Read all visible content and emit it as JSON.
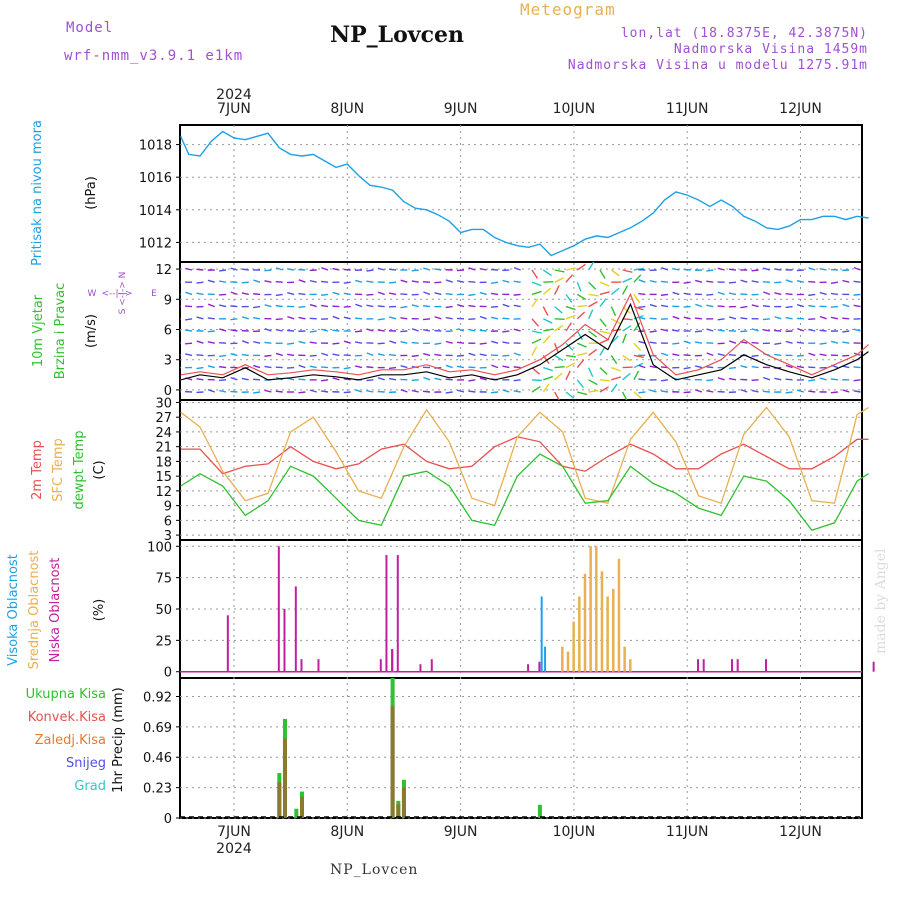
{
  "header": {
    "model_label": "Model",
    "model_name": "wrf-nmm_v3.9.1  e1km",
    "title": "NP_Lovcen",
    "meteogram_label": "Meteogram",
    "coords": "lon,lat (18.8375E, 42.3875N)",
    "altitude": "Nadmorska Visina 1459m",
    "model_altitude": "Nadmorska Visina u modelu 1275.91m"
  },
  "footer": {
    "station": "NP_Lovcen",
    "watermark": "made by Angel"
  },
  "colors": {
    "pressure": "#1ea0e6",
    "wind_speed": "#000000",
    "wind_gust": "#e85050",
    "t2m": "#e85050",
    "tsfc": "#e8b050",
    "dewpoint": "#30c030",
    "cloud_high": "#1ea0e6",
    "cloud_mid": "#e8b050",
    "cloud_low": "#c020a0",
    "precip_total": "#30c030",
    "precip_conv": "#e85050",
    "precip_frozen": "#e87a30"
  },
  "chart_data": [
    {
      "type": "line",
      "panel": "pressure",
      "title": "",
      "ylabel": "Pritisak na nivou mora",
      "unit": "(hPa)",
      "year_label": "2024",
      "x_ticks": [
        "7JUN",
        "8JUN",
        "9JUN",
        "10JUN",
        "11JUN",
        "12JUN"
      ],
      "yticks": [
        1012,
        1014,
        1016,
        1018
      ],
      "ylim": [
        1010.8,
        1019.2
      ],
      "x": [
        -0.47,
        -0.4,
        -0.3,
        -0.2,
        -0.1,
        0.0,
        0.1,
        0.2,
        0.3,
        0.4,
        0.5,
        0.6,
        0.7,
        0.8,
        0.9,
        1.0,
        1.1,
        1.2,
        1.3,
        1.4,
        1.5,
        1.6,
        1.7,
        1.8,
        1.9,
        2.0,
        2.1,
        2.2,
        2.3,
        2.4,
        2.5,
        2.6,
        2.7,
        2.8,
        2.9,
        3.0,
        3.1,
        3.2,
        3.3,
        3.4,
        3.5,
        3.6,
        3.7,
        3.8,
        3.9,
        4.0,
        4.1,
        4.2,
        4.3,
        4.4,
        4.5,
        4.6,
        4.7,
        4.8,
        4.9,
        5.0,
        5.1,
        5.2,
        5.3,
        5.4,
        5.5,
        5.6
      ],
      "series": [
        {
          "name": "",
          "values": [
            1018.5,
            1017.4,
            1017.3,
            1018.2,
            1018.8,
            1018.4,
            1018.3,
            1018.5,
            1018.7,
            1017.8,
            1017.4,
            1017.3,
            1017.4,
            1017.0,
            1016.6,
            1016.8,
            1016.1,
            1015.5,
            1015.4,
            1015.2,
            1014.5,
            1014.1,
            1014.0,
            1013.7,
            1013.3,
            1012.6,
            1012.8,
            1012.8,
            1012.3,
            1012.0,
            1011.8,
            1011.7,
            1011.9,
            1011.2,
            1011.5,
            1011.8,
            1012.2,
            1012.4,
            1012.3,
            1012.6,
            1012.9,
            1013.3,
            1013.8,
            1014.6,
            1015.1,
            1014.9,
            1014.6,
            1014.2,
            1014.6,
            1014.2,
            1013.6,
            1013.3,
            1012.9,
            1012.8,
            1013.0,
            1013.4,
            1013.4,
            1013.6,
            1013.6,
            1013.4,
            1013.6,
            1013.5
          ]
        }
      ]
    },
    {
      "type": "line",
      "panel": "wind",
      "title": "",
      "ylabel": "10m Vjetar Brzina i Pravac",
      "unit": "(m/s)",
      "ylabel_parts": [
        "10m Vjetar",
        "Brzina i Pravac"
      ],
      "compass": [
        "W",
        "<--|-->",
        "E",
        "S",
        "<-|->",
        "N"
      ],
      "yticks": [
        0,
        3,
        6,
        9,
        12
      ],
      "ylim": [
        -1,
        12.7
      ],
      "x": [
        -0.47,
        -0.3,
        -0.1,
        0.1,
        0.3,
        0.5,
        0.7,
        0.9,
        1.1,
        1.3,
        1.5,
        1.7,
        1.9,
        2.1,
        2.3,
        2.5,
        2.7,
        2.9,
        3.1,
        3.3,
        3.5,
        3.7,
        3.9,
        4.1,
        4.3,
        4.5,
        4.7,
        4.9,
        5.1,
        5.3,
        5.5,
        5.6
      ],
      "series": [
        {
          "name": "",
          "values": [
            1.0,
            1.5,
            1.2,
            2.2,
            1.0,
            1.2,
            1.5,
            1.3,
            1.0,
            1.5,
            1.5,
            1.8,
            1.2,
            1.5,
            1.0,
            1.5,
            2.5,
            4.0,
            5.5,
            4.0,
            8.5,
            2.5,
            1.0,
            1.5,
            2.0,
            3.5,
            2.5,
            1.8,
            1.2,
            2.0,
            3.0,
            3.8
          ]
        },
        {
          "name": "",
          "values": [
            1.5,
            1.8,
            1.5,
            2.5,
            1.5,
            1.7,
            2.0,
            1.8,
            1.5,
            2.0,
            2.0,
            2.5,
            1.8,
            2.0,
            1.5,
            2.0,
            3.0,
            4.5,
            6.5,
            5.0,
            9.5,
            3.5,
            1.5,
            2.0,
            3.0,
            5.0,
            3.5,
            2.5,
            1.5,
            2.5,
            3.5,
            4.5
          ]
        }
      ]
    },
    {
      "type": "line",
      "panel": "temperature",
      "title": "",
      "ylabel": "2m Temp / SFC Temp / dewpt Temp",
      "unit": "(C)",
      "ylabel_parts": [
        "2m Temp",
        "SFC Temp",
        "dewpt Temp"
      ],
      "yticks": [
        3,
        6,
        9,
        12,
        15,
        18,
        21,
        24,
        27,
        30
      ],
      "ylim": [
        2,
        30.5
      ],
      "x": [
        -0.47,
        -0.3,
        -0.1,
        0.1,
        0.3,
        0.5,
        0.7,
        0.9,
        1.1,
        1.3,
        1.5,
        1.7,
        1.9,
        2.1,
        2.3,
        2.5,
        2.7,
        2.9,
        3.1,
        3.3,
        3.5,
        3.7,
        3.9,
        4.1,
        4.3,
        4.5,
        4.7,
        4.9,
        5.1,
        5.3,
        5.5,
        5.6
      ],
      "series": [
        {
          "name": "2m Temp",
          "values": [
            20.5,
            20.5,
            15.5,
            17.0,
            17.5,
            21.0,
            18.0,
            16.5,
            17.5,
            20.5,
            21.5,
            18.0,
            16.5,
            17.0,
            21.0,
            23.0,
            22.0,
            17.0,
            16.0,
            19.0,
            21.5,
            19.5,
            16.5,
            16.5,
            19.5,
            21.5,
            19.0,
            16.5,
            16.5,
            19.0,
            22.5,
            22.5
          ]
        },
        {
          "name": "SFC Temp",
          "values": [
            28.0,
            25.0,
            16.0,
            10.0,
            11.5,
            24.0,
            27.0,
            20.0,
            12.0,
            10.5,
            21.0,
            28.5,
            22.0,
            10.5,
            9.0,
            23.0,
            28.0,
            24.0,
            10.5,
            9.5,
            22.5,
            28.0,
            22.0,
            11.0,
            9.5,
            23.5,
            29.0,
            23.0,
            10.0,
            9.5,
            27.5,
            29.0
          ]
        },
        {
          "name": "dewpt Temp",
          "values": [
            13.0,
            15.5,
            13.0,
            7.0,
            10.0,
            17.0,
            15.0,
            10.5,
            6.0,
            5.0,
            15.0,
            16.0,
            13.0,
            6.0,
            5.0,
            15.0,
            19.5,
            17.0,
            9.5,
            10.0,
            17.0,
            13.5,
            11.5,
            8.5,
            7.0,
            15.0,
            14.0,
            10.0,
            4.0,
            5.5,
            14.0,
            15.5
          ]
        }
      ]
    },
    {
      "type": "bar",
      "panel": "cloud",
      "title": "",
      "ylabel": "Visoka / Srednja / Niska Oblacnost",
      "unit": "(%)",
      "ylabel_parts": [
        "Visoka Oblacnost",
        "Srednja Oblacnost",
        "Niska Oblacnost"
      ],
      "yticks": [
        0,
        25,
        50,
        75,
        100
      ],
      "ylim": [
        -5,
        105
      ],
      "series": [
        {
          "name": "Visoka Oblacnost",
          "x": [
            1.35,
            1.4,
            2.7,
            2.72,
            2.75
          ],
          "values": [
            12,
            18,
            6,
            60,
            20
          ]
        },
        {
          "name": "Srednja Oblacnost",
          "x": [
            1.4,
            2.9,
            2.95,
            3.0,
            3.05,
            3.1,
            3.15,
            3.2,
            3.25,
            3.3,
            3.35,
            3.4,
            3.45,
            3.5
          ],
          "values": [
            18,
            20,
            16,
            40,
            60,
            78,
            100,
            100,
            80,
            60,
            66,
            90,
            20,
            10
          ]
        },
        {
          "name": "Niska Oblacnost",
          "x": [
            -0.05,
            0.4,
            0.45,
            0.55,
            0.6,
            0.75,
            1.3,
            1.35,
            1.4,
            1.45,
            1.65,
            1.75,
            2.6,
            2.7,
            4.1,
            4.15,
            4.4,
            4.45,
            4.7,
            5.65
          ],
          "values": [
            45,
            100,
            50,
            68,
            10,
            10,
            10,
            93,
            18,
            93,
            6,
            10,
            6,
            8,
            10,
            10,
            10,
            10,
            10,
            8
          ]
        }
      ]
    },
    {
      "type": "bar",
      "panel": "precip",
      "title": "",
      "ylabel": "1hr Precip",
      "unit": "(mm)",
      "yticks": [
        0,
        0.23,
        0.46,
        0.69,
        0.92
      ],
      "ylim": [
        0,
        1.06
      ],
      "legend": [
        "Ukupna Kisa",
        "Konvek.Kisa",
        "Zaledj.Kisa",
        "Snijeg",
        "Grad"
      ],
      "legend_colors": [
        "#30c030",
        "#e85050",
        "#e87a30",
        "#5050e8",
        "#30c8c8"
      ],
      "series": [
        {
          "name": "Ukupna Kisa",
          "x": [
            0.4,
            0.45,
            0.55,
            0.6,
            1.4,
            1.45,
            1.5,
            2.7
          ],
          "values": [
            0.34,
            0.75,
            0.07,
            0.2,
            1.06,
            0.13,
            0.29,
            0.1
          ]
        }
      ]
    }
  ]
}
